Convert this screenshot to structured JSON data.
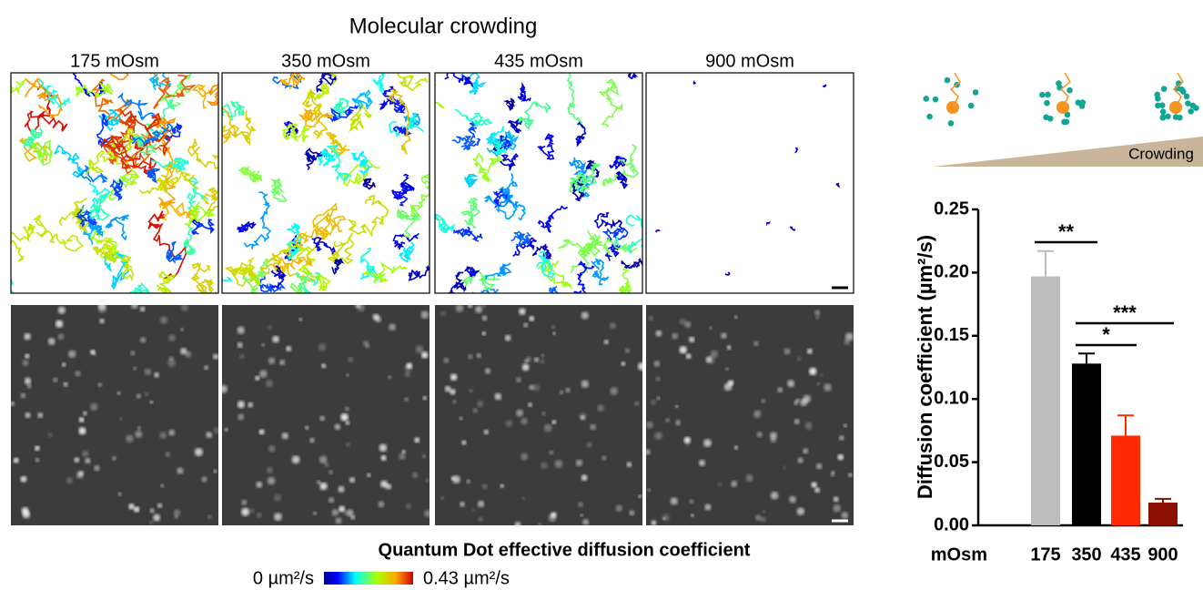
{
  "figure": {
    "title": "Molecular crowding",
    "panels": [
      "175 mOsm",
      "350 mOsm",
      "435 mOsm",
      "900 mOsm"
    ],
    "colorbar": {
      "title": "Quantum Dot effective diffusion coefficient",
      "min_label": "0 µm²/s",
      "max_label": "0.43 µm²/s"
    },
    "schematic_label": "Crowding"
  },
  "chart_data": {
    "type": "bar",
    "y_label": "Diffusion coefficient (µm²/s)",
    "x_label": "mOsm",
    "categories": [
      "175",
      "350",
      "435",
      "900"
    ],
    "values": [
      0.197,
      0.128,
      0.071,
      0.018
    ],
    "errors": [
      0.02,
      0.008,
      0.016,
      0.003
    ],
    "colors": [
      "#bdbdbd",
      "#000000",
      "#ff2a00",
      "#8b1000"
    ],
    "ylim": [
      0,
      0.25
    ],
    "yticks": [
      {
        "value": 0,
        "label": "0.00"
      },
      {
        "value": 0.05,
        "label": "0.05"
      },
      {
        "value": 0.1,
        "label": "0.10"
      },
      {
        "value": 0.15,
        "label": "0.15"
      },
      {
        "value": 0.2,
        "label": "0.20"
      },
      {
        "value": 0.25,
        "label": "0.25"
      }
    ],
    "significance": [
      {
        "between": [
          "175",
          "350"
        ],
        "label": "**"
      },
      {
        "between": [
          "350",
          "435"
        ],
        "label": "*"
      },
      {
        "between": [
          "350",
          "900"
        ],
        "label": "***"
      }
    ]
  }
}
